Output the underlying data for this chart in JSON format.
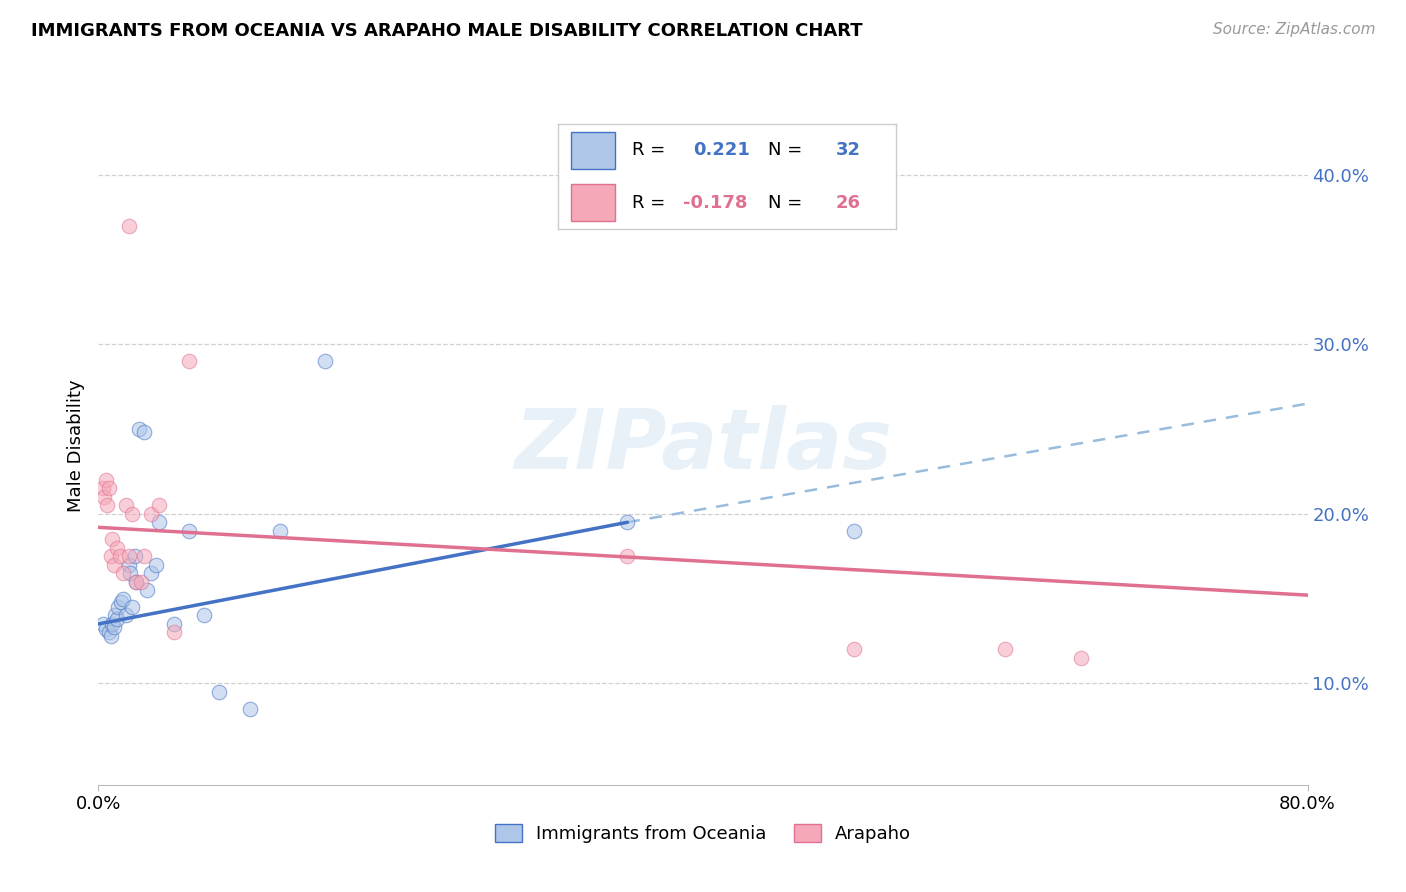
{
  "title": "IMMIGRANTS FROM OCEANIA VS ARAPAHO MALE DISABILITY CORRELATION CHART",
  "source": "Source: ZipAtlas.com",
  "ylabel": "Male Disability",
  "watermark": "ZIPatlas",
  "xlim": [
    0.0,
    0.8
  ],
  "ylim": [
    0.04,
    0.44
  ],
  "yticks_right": [
    0.1,
    0.2,
    0.3,
    0.4
  ],
  "ytick_labels_right": [
    "10.0%",
    "20.0%",
    "30.0%",
    "40.0%"
  ],
  "background_color": "#ffffff",
  "grid_color": "#d0d0d0",
  "series1_color": "#aec6e8",
  "series2_color": "#f4a8b8",
  "line1_color": "#4472c4",
  "line2_color": "#e07090",
  "dashed_line_color": "#9abcdc",
  "blue_scatter_x": [
    0.003,
    0.005,
    0.007,
    0.008,
    0.009,
    0.01,
    0.011,
    0.012,
    0.013,
    0.015,
    0.016,
    0.018,
    0.02,
    0.021,
    0.022,
    0.024,
    0.025,
    0.027,
    0.03,
    0.032,
    0.035,
    0.038,
    0.04,
    0.05,
    0.06,
    0.07,
    0.08,
    0.1,
    0.12,
    0.15,
    0.35,
    0.5
  ],
  "blue_scatter_y": [
    0.135,
    0.132,
    0.13,
    0.128,
    0.135,
    0.133,
    0.14,
    0.138,
    0.145,
    0.148,
    0.15,
    0.14,
    0.17,
    0.165,
    0.145,
    0.175,
    0.16,
    0.25,
    0.248,
    0.155,
    0.165,
    0.17,
    0.195,
    0.135,
    0.19,
    0.14,
    0.095,
    0.085,
    0.19,
    0.29,
    0.195,
    0.19
  ],
  "pink_scatter_x": [
    0.003,
    0.004,
    0.005,
    0.006,
    0.007,
    0.008,
    0.009,
    0.01,
    0.012,
    0.014,
    0.016,
    0.018,
    0.02,
    0.022,
    0.025,
    0.028,
    0.03,
    0.035,
    0.04,
    0.05,
    0.06,
    0.35,
    0.5,
    0.6,
    0.65,
    0.02
  ],
  "pink_scatter_y": [
    0.215,
    0.21,
    0.22,
    0.205,
    0.215,
    0.175,
    0.185,
    0.17,
    0.18,
    0.175,
    0.165,
    0.205,
    0.175,
    0.2,
    0.16,
    0.16,
    0.175,
    0.2,
    0.205,
    0.13,
    0.29,
    0.175,
    0.12,
    0.12,
    0.115,
    0.37
  ],
  "blue_line_x0": 0.0,
  "blue_line_y0": 0.135,
  "blue_line_x1": 0.35,
  "blue_line_y1": 0.195,
  "dashed_line_x0": 0.35,
  "dashed_line_y0": 0.195,
  "dashed_line_x1": 0.8,
  "dashed_line_y1": 0.265,
  "pink_line_x0": 0.0,
  "pink_line_y0": 0.192,
  "pink_line_x1": 0.8,
  "pink_line_y1": 0.152,
  "marker_size": 110,
  "marker_alpha": 0.55,
  "legend_label1": "Immigrants from Oceania",
  "legend_label2": "Arapaho"
}
